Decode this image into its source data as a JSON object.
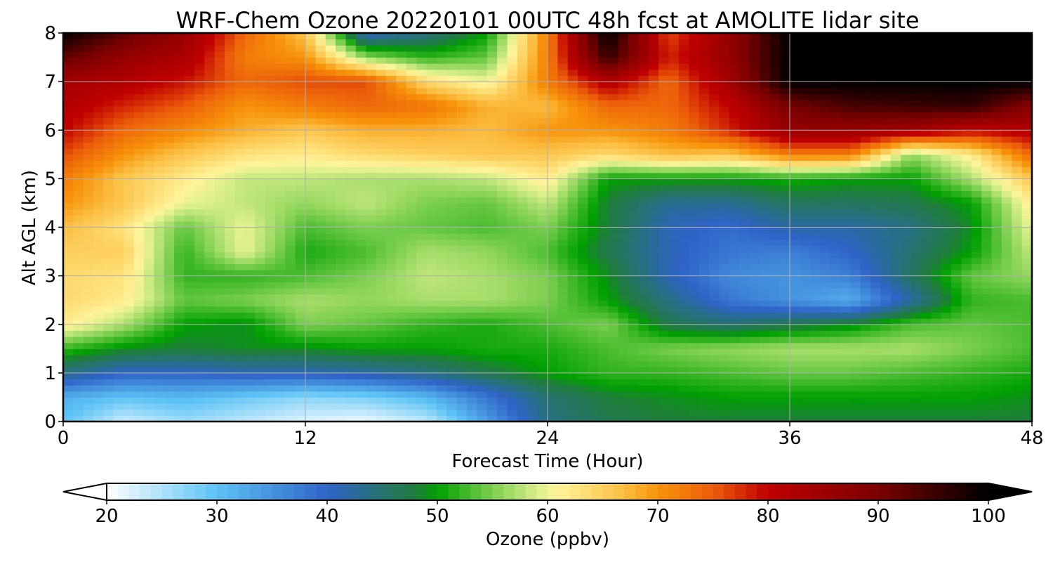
{
  "chart_data": {
    "type": "heatmap",
    "title": "WRF-Chem Ozone  20220101 00UTC 48h fcst at AMOLITE lidar site",
    "xlabel": "Forecast Time (Hour)",
    "ylabel": "Alt AGL (km)",
    "xlim": [
      0,
      48
    ],
    "ylim": [
      0,
      8
    ],
    "x_ticks": [
      "0",
      "12",
      "24",
      "36",
      "48"
    ],
    "y_ticks": [
      "0",
      "1",
      "2",
      "3",
      "4",
      "5",
      "6",
      "7",
      "8"
    ],
    "grid": true,
    "colorbar": {
      "label": "Ozone  (ppbv)",
      "range": [
        20,
        100
      ],
      "extend": "both",
      "ticks": [
        "20",
        "30",
        "40",
        "50",
        "60",
        "70",
        "80",
        "90",
        "100"
      ],
      "colors": {
        "20": "#ffffff",
        "30": "#5cc3f5",
        "40": "#2f63c8",
        "48": "#1f7c3c",
        "50": "#00a000",
        "55": "#7ccf50",
        "59": "#d8ee88",
        "61": "#fff49a",
        "67": "#fbbd40",
        "70": "#f7930a",
        "75": "#ec5d0a",
        "80": "#c00000",
        "90": "#7a0000",
        "100": "#000000"
      }
    },
    "x": [
      0,
      3,
      6,
      9,
      12,
      15,
      18,
      21,
      24,
      27,
      30,
      33,
      36,
      39,
      42,
      45,
      48
    ],
    "y": [
      0,
      0.5,
      1,
      1.5,
      2,
      2.5,
      3,
      3.5,
      4,
      4.5,
      5,
      5.5,
      6,
      6.5,
      7,
      7.5,
      8
    ],
    "z": [
      [
        30,
        23,
        26,
        24,
        22,
        21,
        24,
        34,
        44,
        47,
        48,
        48,
        48,
        48,
        48,
        48,
        48
      ],
      [
        32,
        30,
        31,
        29,
        27,
        28,
        31,
        38,
        45,
        48,
        49,
        50,
        50,
        50,
        50,
        50,
        49
      ],
      [
        44,
        40,
        40,
        41,
        41,
        42,
        44,
        47,
        50,
        52,
        52,
        53,
        54,
        54,
        53,
        52,
        51
      ],
      [
        52,
        49,
        48,
        49,
        49,
        50,
        50,
        51,
        51,
        53,
        55,
        56,
        57,
        57,
        57,
        55,
        53
      ],
      [
        62,
        57,
        50,
        49,
        55,
        54,
        52,
        51,
        53,
        55,
        47,
        45,
        47,
        49,
        53,
        54,
        53
      ],
      [
        64,
        62,
        54,
        55,
        57,
        56,
        57,
        57,
        55,
        50,
        44,
        38,
        35,
        32,
        42,
        52,
        53
      ],
      [
        64,
        63,
        52,
        52,
        53,
        55,
        58,
        57,
        55,
        49,
        41,
        36,
        35,
        37,
        46,
        54,
        56
      ],
      [
        65,
        65,
        52,
        60,
        51,
        53,
        57,
        56,
        53,
        47,
        41,
        38,
        37,
        40,
        45,
        50,
        58
      ],
      [
        67,
        63,
        54,
        60,
        53,
        55,
        54,
        53,
        55,
        48,
        41,
        39,
        42,
        42,
        44,
        49,
        60
      ],
      [
        70,
        66,
        60,
        58,
        56,
        58,
        55,
        54,
        58,
        48,
        43,
        43,
        46,
        46,
        47,
        50,
        62
      ],
      [
        72,
        66,
        62,
        58,
        58,
        57,
        57,
        58,
        62,
        50,
        50,
        50,
        51,
        50,
        50,
        57,
        66
      ],
      [
        76,
        70,
        66,
        63,
        62,
        64,
        65,
        66,
        66,
        64,
        67,
        66,
        72,
        72,
        56,
        62,
        74
      ],
      [
        80,
        74,
        71,
        68,
        66,
        68,
        68,
        67,
        70,
        70,
        72,
        78,
        86,
        86,
        84,
        80,
        82
      ],
      [
        82,
        78,
        75,
        70,
        72,
        74,
        73,
        68,
        67,
        74,
        74,
        80,
        90,
        94,
        95,
        96,
        88
      ],
      [
        84,
        82,
        79,
        74,
        76,
        76,
        64,
        60,
        72,
        82,
        74,
        84,
        100,
        100,
        100,
        100,
        100
      ],
      [
        92,
        86,
        83,
        72,
        70,
        56,
        52,
        54,
        72,
        96,
        78,
        86,
        100,
        100,
        100,
        100,
        100
      ],
      [
        100,
        92,
        86,
        74,
        66,
        40,
        44,
        50,
        72,
        100,
        76,
        86,
        100,
        100,
        100,
        100,
        100
      ]
    ]
  }
}
